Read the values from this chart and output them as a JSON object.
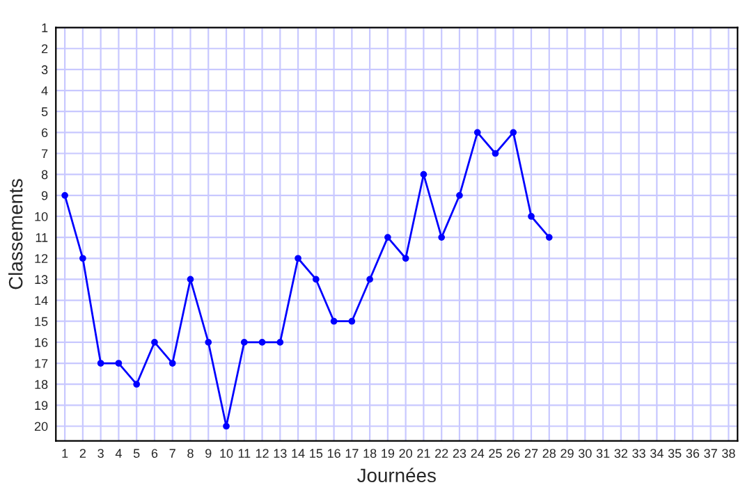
{
  "chart_data": {
    "type": "line",
    "xlabel": "Journées",
    "ylabel": "Classements",
    "x": [
      1,
      2,
      3,
      4,
      5,
      6,
      7,
      8,
      9,
      10,
      11,
      12,
      13,
      14,
      15,
      16,
      17,
      18,
      19,
      20,
      21,
      22,
      23,
      24,
      25,
      26,
      27,
      28
    ],
    "series": [
      {
        "color": "#0000ff",
        "values": [
          9,
          12,
          17,
          17,
          18,
          16,
          17,
          13,
          16,
          20,
          16,
          16,
          16,
          12,
          13,
          15,
          15,
          13,
          11,
          12,
          8,
          11,
          9,
          6,
          7,
          6,
          10,
          11
        ]
      }
    ],
    "xlim": [
      0.5,
      38.5
    ],
    "xticks": [
      1,
      2,
      3,
      4,
      5,
      6,
      7,
      8,
      9,
      10,
      11,
      12,
      13,
      14,
      15,
      16,
      17,
      18,
      19,
      20,
      21,
      22,
      23,
      24,
      25,
      26,
      27,
      28,
      29,
      30,
      31,
      32,
      33,
      34,
      35,
      36,
      37,
      38
    ],
    "ylim": [
      20.7,
      1
    ],
    "yticks": [
      1,
      2,
      3,
      4,
      5,
      6,
      7,
      8,
      9,
      10,
      11,
      12,
      13,
      14,
      15,
      16,
      17,
      18,
      19,
      20
    ],
    "grid": true,
    "marker": "circle",
    "line_style": "solid"
  }
}
